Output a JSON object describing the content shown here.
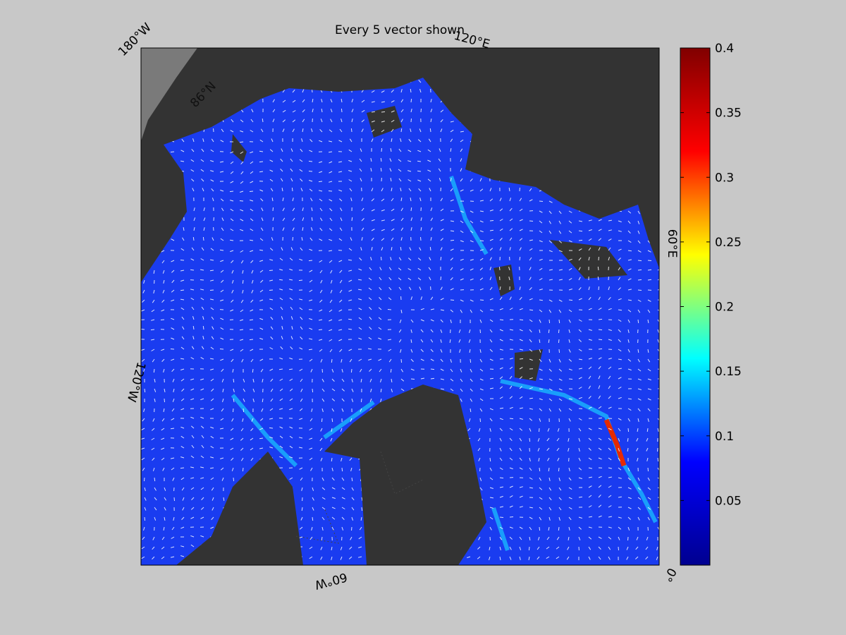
{
  "title": "Every 5 vector shown",
  "map_labels": {
    "lon": [
      "180°W",
      "120°E",
      "60°E",
      "0°",
      "60°W",
      "120°W"
    ],
    "lat": [
      "86°N"
    ]
  },
  "colorbar": {
    "ylim": [
      0,
      0.4
    ],
    "yticks": [
      0.05,
      0.1,
      0.15,
      0.2,
      0.25,
      0.3,
      0.35,
      0.4
    ],
    "colors": [
      "#00008f",
      "#0000ff",
      "#00ffff",
      "#ffff00",
      "#ff0000",
      "#800000"
    ]
  }
}
